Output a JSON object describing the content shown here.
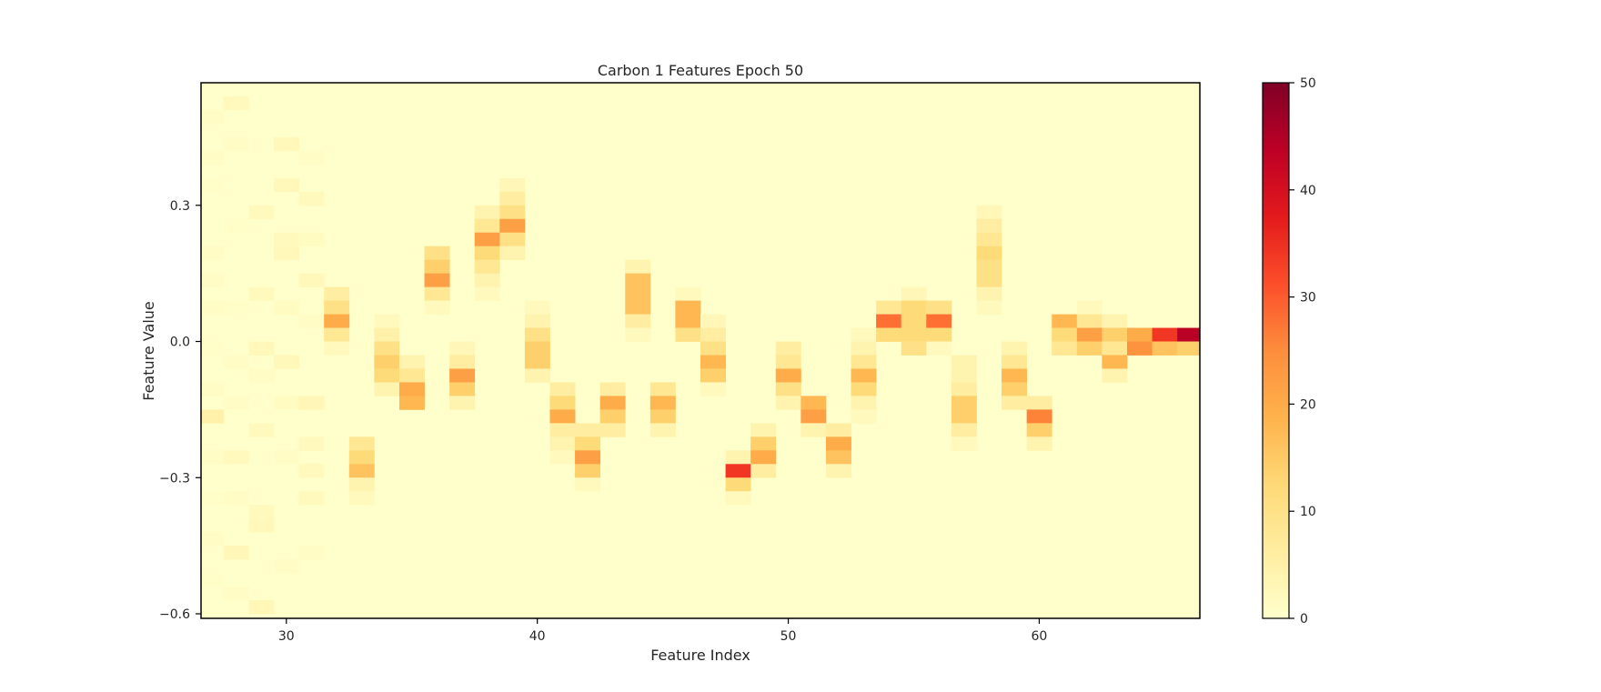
{
  "chart_data": {
    "type": "heatmap",
    "title": "Carbon 1 Features Epoch 50",
    "xlabel": "Feature Index",
    "ylabel": "Feature Value",
    "xlim": [
      26.6,
      66.4
    ],
    "ylim": [
      -0.61,
      0.57
    ],
    "xticks": [
      30,
      40,
      50,
      60
    ],
    "yticks": [
      -0.6,
      -0.3,
      0.0,
      0.3
    ],
    "ytick_labels": [
      "−0.6",
      "−0.3",
      "0.0",
      "0.3"
    ],
    "colorbar": {
      "min": 0,
      "max": 50,
      "ticks": [
        0,
        10,
        20,
        30,
        40,
        50
      ],
      "colormap": "YlOrRd"
    },
    "grid": false,
    "bin_width_x": 1,
    "bin_height_y": 0.03,
    "cells": [
      {
        "x": 27,
        "y": 0.495,
        "v": 1
      },
      {
        "x": 27,
        "y": 0.405,
        "v": 1
      },
      {
        "x": 27,
        "y": 0.345,
        "v": 0.5
      },
      {
        "x": 27,
        "y": 0.195,
        "v": 1
      },
      {
        "x": 27,
        "y": 0.135,
        "v": 1
      },
      {
        "x": 27,
        "y": 0.075,
        "v": 1
      },
      {
        "x": 27,
        "y": -0.015,
        "v": 0.5
      },
      {
        "x": 27,
        "y": -0.105,
        "v": 1
      },
      {
        "x": 27,
        "y": -0.165,
        "v": 5
      },
      {
        "x": 27,
        "y": -0.255,
        "v": 1
      },
      {
        "x": 27,
        "y": -0.345,
        "v": 0.5
      },
      {
        "x": 27,
        "y": -0.435,
        "v": 1
      },
      {
        "x": 27,
        "y": -0.525,
        "v": 0.5
      },
      {
        "x": 28,
        "y": 0.525,
        "v": 2
      },
      {
        "x": 28,
        "y": 0.435,
        "v": 1
      },
      {
        "x": 28,
        "y": 0.255,
        "v": 0.5
      },
      {
        "x": 28,
        "y": 0.075,
        "v": 0.5
      },
      {
        "x": 28,
        "y": -0.045,
        "v": 1
      },
      {
        "x": 28,
        "y": -0.135,
        "v": 1
      },
      {
        "x": 28,
        "y": -0.255,
        "v": 2
      },
      {
        "x": 28,
        "y": -0.345,
        "v": 1
      },
      {
        "x": 28,
        "y": -0.465,
        "v": 3
      },
      {
        "x": 28,
        "y": -0.555,
        "v": 1
      },
      {
        "x": 29,
        "y": 0.285,
        "v": 2
      },
      {
        "x": 29,
        "y": 0.105,
        "v": 2
      },
      {
        "x": 29,
        "y": -0.015,
        "v": 2.5
      },
      {
        "x": 29,
        "y": -0.075,
        "v": 1
      },
      {
        "x": 29,
        "y": -0.195,
        "v": 2
      },
      {
        "x": 29,
        "y": -0.375,
        "v": 2
      },
      {
        "x": 29,
        "y": -0.405,
        "v": 2.5
      },
      {
        "x": 29,
        "y": -0.585,
        "v": 3
      },
      {
        "x": 30,
        "y": 0.435,
        "v": 2.5
      },
      {
        "x": 30,
        "y": 0.345,
        "v": 2.5
      },
      {
        "x": 30,
        "y": 0.225,
        "v": 2
      },
      {
        "x": 30,
        "y": 0.195,
        "v": 2.5
      },
      {
        "x": 30,
        "y": 0.075,
        "v": 1.5
      },
      {
        "x": 30,
        "y": -0.045,
        "v": 2.5
      },
      {
        "x": 30,
        "y": -0.135,
        "v": 1.5
      },
      {
        "x": 30,
        "y": -0.255,
        "v": 1
      },
      {
        "x": 30,
        "y": -0.495,
        "v": 1
      },
      {
        "x": 31,
        "y": 0.405,
        "v": 1
      },
      {
        "x": 31,
        "y": 0.315,
        "v": 2
      },
      {
        "x": 31,
        "y": 0.225,
        "v": 1.5
      },
      {
        "x": 31,
        "y": 0.135,
        "v": 2.5
      },
      {
        "x": 31,
        "y": 0.045,
        "v": 1
      },
      {
        "x": 31,
        "y": -0.135,
        "v": 3
      },
      {
        "x": 31,
        "y": -0.225,
        "v": 2
      },
      {
        "x": 31,
        "y": -0.285,
        "v": 2
      },
      {
        "x": 31,
        "y": -0.345,
        "v": 2
      },
      {
        "x": 31,
        "y": -0.465,
        "v": 1
      },
      {
        "x": 32,
        "y": 0.105,
        "v": 6
      },
      {
        "x": 32,
        "y": 0.075,
        "v": 10
      },
      {
        "x": 32,
        "y": 0.045,
        "v": 20
      },
      {
        "x": 32,
        "y": 0.015,
        "v": 8
      },
      {
        "x": 32,
        "y": -0.015,
        "v": 2
      },
      {
        "x": 33,
        "y": -0.225,
        "v": 8
      },
      {
        "x": 33,
        "y": -0.255,
        "v": 12
      },
      {
        "x": 33,
        "y": -0.285,
        "v": 16
      },
      {
        "x": 33,
        "y": -0.315,
        "v": 4
      },
      {
        "x": 33,
        "y": -0.345,
        "v": 2
      },
      {
        "x": 34,
        "y": 0.045,
        "v": 2
      },
      {
        "x": 34,
        "y": 0.015,
        "v": 5
      },
      {
        "x": 34,
        "y": -0.015,
        "v": 10
      },
      {
        "x": 34,
        "y": -0.045,
        "v": 14
      },
      {
        "x": 34,
        "y": -0.075,
        "v": 12
      },
      {
        "x": 34,
        "y": -0.105,
        "v": 4
      },
      {
        "x": 35,
        "y": -0.045,
        "v": 4
      },
      {
        "x": 35,
        "y": -0.075,
        "v": 8
      },
      {
        "x": 35,
        "y": -0.105,
        "v": 20
      },
      {
        "x": 35,
        "y": -0.135,
        "v": 18
      },
      {
        "x": 36,
        "y": 0.195,
        "v": 10
      },
      {
        "x": 36,
        "y": 0.165,
        "v": 14
      },
      {
        "x": 36,
        "y": 0.135,
        "v": 22
      },
      {
        "x": 36,
        "y": 0.105,
        "v": 8
      },
      {
        "x": 36,
        "y": 0.075,
        "v": 2
      },
      {
        "x": 37,
        "y": -0.015,
        "v": 3
      },
      {
        "x": 37,
        "y": -0.045,
        "v": 6
      },
      {
        "x": 37,
        "y": -0.075,
        "v": 22
      },
      {
        "x": 37,
        "y": -0.105,
        "v": 14
      },
      {
        "x": 37,
        "y": -0.135,
        "v": 4
      },
      {
        "x": 38,
        "y": 0.285,
        "v": 4
      },
      {
        "x": 38,
        "y": 0.255,
        "v": 8
      },
      {
        "x": 38,
        "y": 0.225,
        "v": 22
      },
      {
        "x": 38,
        "y": 0.195,
        "v": 12
      },
      {
        "x": 38,
        "y": 0.165,
        "v": 8
      },
      {
        "x": 38,
        "y": 0.135,
        "v": 4
      },
      {
        "x": 38,
        "y": 0.105,
        "v": 2
      },
      {
        "x": 39,
        "y": 0.345,
        "v": 3
      },
      {
        "x": 39,
        "y": 0.315,
        "v": 6
      },
      {
        "x": 39,
        "y": 0.285,
        "v": 10
      },
      {
        "x": 39,
        "y": 0.255,
        "v": 22
      },
      {
        "x": 39,
        "y": 0.225,
        "v": 10
      },
      {
        "x": 39,
        "y": 0.195,
        "v": 4
      },
      {
        "x": 40,
        "y": 0.075,
        "v": 2
      },
      {
        "x": 40,
        "y": 0.045,
        "v": 4
      },
      {
        "x": 40,
        "y": 0.015,
        "v": 10
      },
      {
        "x": 40,
        "y": -0.015,
        "v": 14
      },
      {
        "x": 40,
        "y": -0.045,
        "v": 14
      },
      {
        "x": 40,
        "y": -0.075,
        "v": 4
      },
      {
        "x": 41,
        "y": -0.105,
        "v": 6
      },
      {
        "x": 41,
        "y": -0.135,
        "v": 12
      },
      {
        "x": 41,
        "y": -0.165,
        "v": 20
      },
      {
        "x": 41,
        "y": -0.195,
        "v": 6
      },
      {
        "x": 41,
        "y": -0.225,
        "v": 4
      },
      {
        "x": 41,
        "y": -0.255,
        "v": 2
      },
      {
        "x": 42,
        "y": -0.195,
        "v": 6
      },
      {
        "x": 42,
        "y": -0.225,
        "v": 12
      },
      {
        "x": 42,
        "y": -0.255,
        "v": 22
      },
      {
        "x": 42,
        "y": -0.285,
        "v": 14
      },
      {
        "x": 42,
        "y": -0.315,
        "v": 2
      },
      {
        "x": 43,
        "y": -0.105,
        "v": 6
      },
      {
        "x": 43,
        "y": -0.135,
        "v": 20
      },
      {
        "x": 43,
        "y": -0.165,
        "v": 14
      },
      {
        "x": 43,
        "y": -0.195,
        "v": 6
      },
      {
        "x": 44,
        "y": 0.165,
        "v": 4
      },
      {
        "x": 44,
        "y": 0.135,
        "v": 16
      },
      {
        "x": 44,
        "y": 0.105,
        "v": 16
      },
      {
        "x": 44,
        "y": 0.075,
        "v": 16
      },
      {
        "x": 44,
        "y": 0.045,
        "v": 6
      },
      {
        "x": 44,
        "y": 0.015,
        "v": 2
      },
      {
        "x": 45,
        "y": -0.105,
        "v": 8
      },
      {
        "x": 45,
        "y": -0.135,
        "v": 18
      },
      {
        "x": 45,
        "y": -0.165,
        "v": 14
      },
      {
        "x": 45,
        "y": -0.195,
        "v": 4
      },
      {
        "x": 46,
        "y": 0.105,
        "v": 2
      },
      {
        "x": 46,
        "y": 0.075,
        "v": 18
      },
      {
        "x": 46,
        "y": 0.045,
        "v": 18
      },
      {
        "x": 46,
        "y": 0.015,
        "v": 10
      },
      {
        "x": 47,
        "y": 0.045,
        "v": 3
      },
      {
        "x": 47,
        "y": 0.015,
        "v": 6
      },
      {
        "x": 47,
        "y": -0.015,
        "v": 10
      },
      {
        "x": 47,
        "y": -0.045,
        "v": 18
      },
      {
        "x": 47,
        "y": -0.075,
        "v": 14
      },
      {
        "x": 47,
        "y": -0.105,
        "v": 2
      },
      {
        "x": 48,
        "y": -0.255,
        "v": 4
      },
      {
        "x": 48,
        "y": -0.285,
        "v": 34
      },
      {
        "x": 48,
        "y": -0.315,
        "v": 12
      },
      {
        "x": 48,
        "y": -0.345,
        "v": 2
      },
      {
        "x": 49,
        "y": -0.195,
        "v": 4
      },
      {
        "x": 49,
        "y": -0.225,
        "v": 14
      },
      {
        "x": 49,
        "y": -0.255,
        "v": 20
      },
      {
        "x": 49,
        "y": -0.285,
        "v": 6
      },
      {
        "x": 50,
        "y": -0.015,
        "v": 6
      },
      {
        "x": 50,
        "y": -0.045,
        "v": 8
      },
      {
        "x": 50,
        "y": -0.075,
        "v": 20
      },
      {
        "x": 50,
        "y": -0.105,
        "v": 10
      },
      {
        "x": 50,
        "y": -0.135,
        "v": 4
      },
      {
        "x": 51,
        "y": -0.135,
        "v": 18
      },
      {
        "x": 51,
        "y": -0.165,
        "v": 22
      },
      {
        "x": 51,
        "y": -0.195,
        "v": 4
      },
      {
        "x": 52,
        "y": -0.195,
        "v": 6
      },
      {
        "x": 52,
        "y": -0.225,
        "v": 20
      },
      {
        "x": 52,
        "y": -0.255,
        "v": 16
      },
      {
        "x": 52,
        "y": -0.285,
        "v": 4
      },
      {
        "x": 53,
        "y": 0.015,
        "v": 2
      },
      {
        "x": 53,
        "y": -0.015,
        "v": 4
      },
      {
        "x": 53,
        "y": -0.045,
        "v": 8
      },
      {
        "x": 53,
        "y": -0.075,
        "v": 18
      },
      {
        "x": 53,
        "y": -0.105,
        "v": 12
      },
      {
        "x": 53,
        "y": -0.135,
        "v": 4
      },
      {
        "x": 53,
        "y": -0.165,
        "v": 2
      },
      {
        "x": 54,
        "y": 0.075,
        "v": 8
      },
      {
        "x": 54,
        "y": 0.045,
        "v": 28
      },
      {
        "x": 54,
        "y": 0.015,
        "v": 12
      },
      {
        "x": 55,
        "y": 0.105,
        "v": 3
      },
      {
        "x": 55,
        "y": 0.075,
        "v": 12
      },
      {
        "x": 55,
        "y": 0.045,
        "v": 12
      },
      {
        "x": 55,
        "y": 0.015,
        "v": 12
      },
      {
        "x": 55,
        "y": -0.015,
        "v": 10
      },
      {
        "x": 56,
        "y": 0.075,
        "v": 10
      },
      {
        "x": 56,
        "y": 0.045,
        "v": 28
      },
      {
        "x": 56,
        "y": 0.015,
        "v": 12
      },
      {
        "x": 56,
        "y": -0.015,
        "v": 2
      },
      {
        "x": 57,
        "y": -0.045,
        "v": 4
      },
      {
        "x": 57,
        "y": -0.075,
        "v": 4
      },
      {
        "x": 57,
        "y": -0.105,
        "v": 6
      },
      {
        "x": 57,
        "y": -0.135,
        "v": 14
      },
      {
        "x": 57,
        "y": -0.165,
        "v": 14
      },
      {
        "x": 57,
        "y": -0.195,
        "v": 6
      },
      {
        "x": 57,
        "y": -0.225,
        "v": 2
      },
      {
        "x": 58,
        "y": 0.285,
        "v": 3
      },
      {
        "x": 58,
        "y": 0.255,
        "v": 6
      },
      {
        "x": 58,
        "y": 0.225,
        "v": 8
      },
      {
        "x": 58,
        "y": 0.195,
        "v": 12
      },
      {
        "x": 58,
        "y": 0.165,
        "v": 10
      },
      {
        "x": 58,
        "y": 0.135,
        "v": 10
      },
      {
        "x": 58,
        "y": 0.105,
        "v": 4
      },
      {
        "x": 58,
        "y": 0.075,
        "v": 2
      },
      {
        "x": 59,
        "y": -0.015,
        "v": 4
      },
      {
        "x": 59,
        "y": -0.045,
        "v": 8
      },
      {
        "x": 59,
        "y": -0.075,
        "v": 18
      },
      {
        "x": 59,
        "y": -0.105,
        "v": 14
      },
      {
        "x": 59,
        "y": -0.135,
        "v": 6
      },
      {
        "x": 60,
        "y": -0.135,
        "v": 6
      },
      {
        "x": 60,
        "y": -0.165,
        "v": 26
      },
      {
        "x": 60,
        "y": -0.195,
        "v": 14
      },
      {
        "x": 60,
        "y": -0.225,
        "v": 4
      },
      {
        "x": 61,
        "y": 0.045,
        "v": 18
      },
      {
        "x": 61,
        "y": 0.015,
        "v": 12
      },
      {
        "x": 61,
        "y": -0.015,
        "v": 8
      },
      {
        "x": 62,
        "y": 0.075,
        "v": 2
      },
      {
        "x": 62,
        "y": 0.045,
        "v": 8
      },
      {
        "x": 62,
        "y": 0.015,
        "v": 22
      },
      {
        "x": 62,
        "y": -0.015,
        "v": 14
      },
      {
        "x": 63,
        "y": 0.045,
        "v": 4
      },
      {
        "x": 63,
        "y": 0.015,
        "v": 14
      },
      {
        "x": 63,
        "y": -0.015,
        "v": 8
      },
      {
        "x": 63,
        "y": -0.045,
        "v": 18
      },
      {
        "x": 63,
        "y": -0.075,
        "v": 4
      },
      {
        "x": 64,
        "y": 0.015,
        "v": 20
      },
      {
        "x": 64,
        "y": -0.015,
        "v": 24
      },
      {
        "x": 65,
        "y": 0.015,
        "v": 34
      },
      {
        "x": 65,
        "y": -0.015,
        "v": 16
      },
      {
        "x": 66,
        "y": 0.015,
        "v": 44
      },
      {
        "x": 66,
        "y": -0.015,
        "v": 14
      }
    ]
  }
}
